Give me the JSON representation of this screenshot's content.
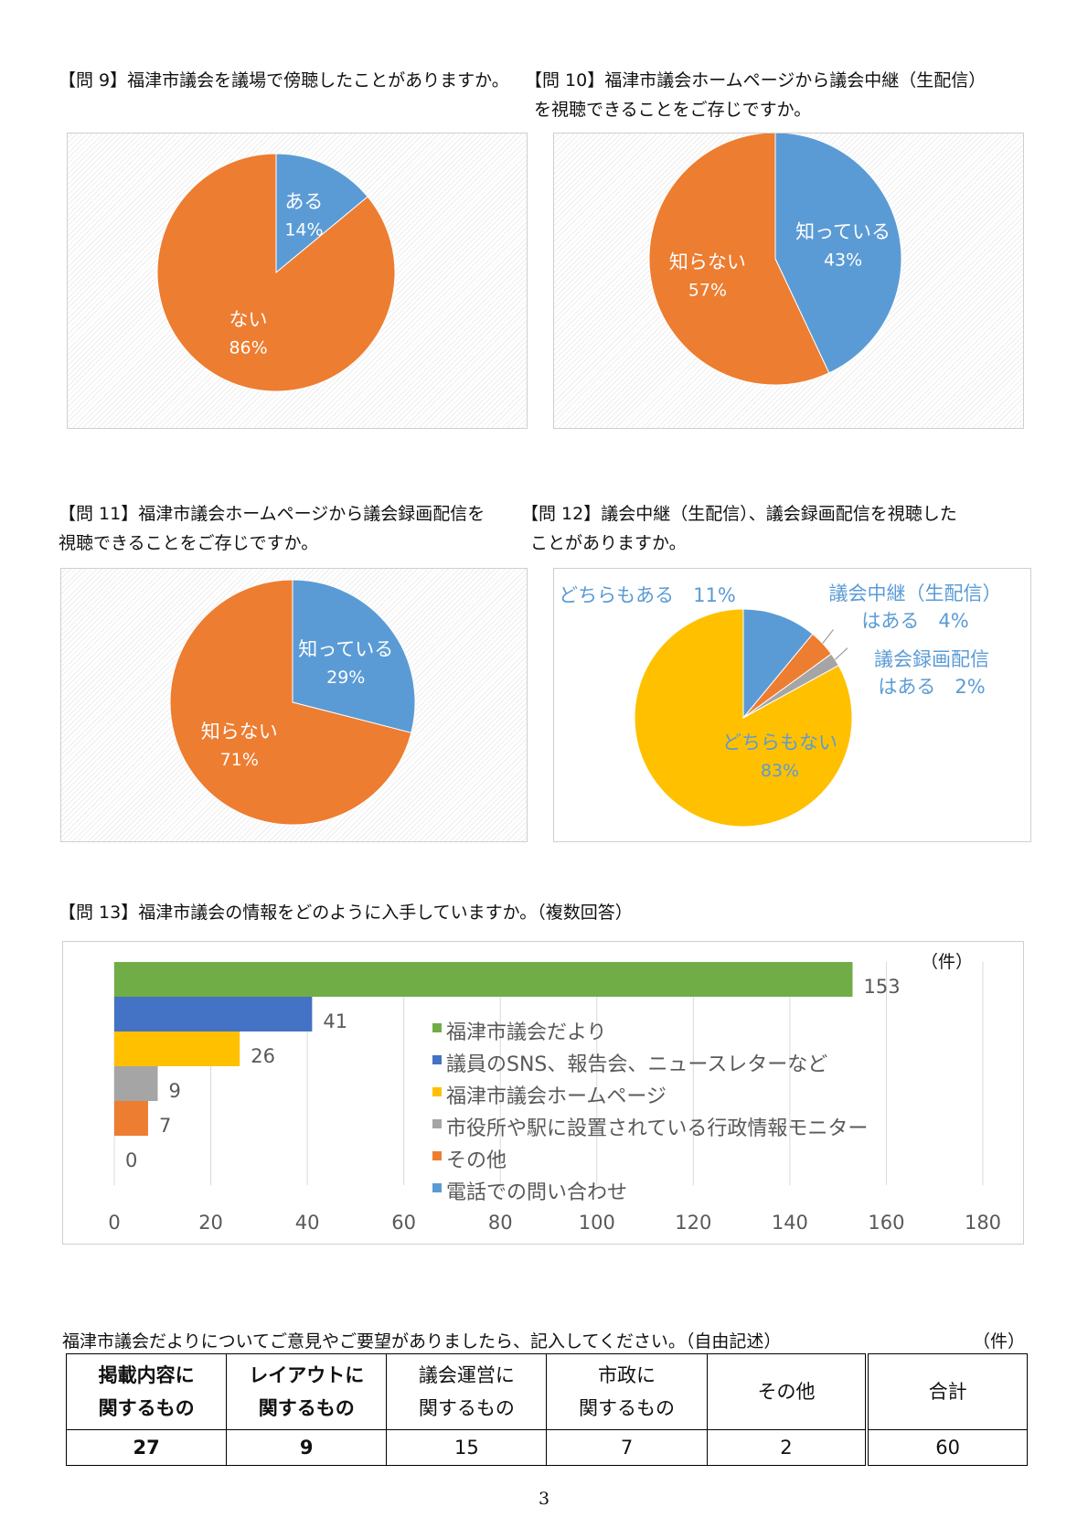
{
  "q9": {
    "title_lines": [
      "【問 9】福津市議会を議場で傍聴したことがありますか。"
    ]
  },
  "q10": {
    "title_lines": [
      "【問 10】福津市議会ホームページから議会中継（生配信）",
      "を視聴できることをご存じですか。"
    ]
  },
  "q11": {
    "title_lines": [
      "【問 11】福津市議会ホームページから議会録画配信を",
      "視聴できることをご存じですか。"
    ]
  },
  "q12": {
    "title_lines": [
      "【問 12】議会中継（生配信）、議会録画配信を視聴した",
      "ことがありますか。"
    ]
  },
  "q13": {
    "title_lines": [
      "【問 13】福津市議会の情報をどのように入手していますか。（複数回答）"
    ]
  },
  "chart_data": [
    {
      "id": "q9",
      "type": "pie",
      "slices": [
        {
          "label": "ある",
          "value": 14,
          "value_label": "14%",
          "color": "#5b9bd5"
        },
        {
          "label": "ない",
          "value": 86,
          "value_label": "86%",
          "color": "#ed7d31"
        }
      ]
    },
    {
      "id": "q10",
      "type": "pie",
      "slices": [
        {
          "label": "知っている",
          "value": 43,
          "value_label": "43%",
          "color": "#5b9bd5"
        },
        {
          "label": "知らない",
          "value": 57,
          "value_label": "57%",
          "color": "#ed7d31"
        }
      ]
    },
    {
      "id": "q11",
      "type": "pie",
      "slices": [
        {
          "label": "知っている",
          "value": 29,
          "value_label": "29%",
          "color": "#5b9bd5"
        },
        {
          "label": "知らない",
          "value": 71,
          "value_label": "71%",
          "color": "#ed7d31"
        }
      ]
    },
    {
      "id": "q12",
      "type": "pie",
      "slices": [
        {
          "label": "どちらもある",
          "value": 11,
          "value_label": "11%",
          "color": "#5b9bd5"
        },
        {
          "label": "議会中継（生配信）はある",
          "label_lines": [
            "議会中継（生配信）",
            "はある　4%"
          ],
          "value": 4,
          "value_label": "4%",
          "color": "#ed7d31"
        },
        {
          "label": "議会録画配信はある",
          "label_lines": [
            "議会録画配信",
            "はある　2%"
          ],
          "value": 2,
          "value_label": "2%",
          "color": "#a5a5a5"
        },
        {
          "label": "どちらもない",
          "value": 83,
          "value_label": "83%",
          "color": "#ffc000"
        }
      ],
      "label_color": "#5b9bd5"
    },
    {
      "id": "q13",
      "type": "bar",
      "orientation": "horizontal",
      "unit_label": "（件）",
      "xlim": [
        0,
        180
      ],
      "x_ticks": [
        0,
        20,
        40,
        60,
        80,
        100,
        120,
        140,
        160,
        180
      ],
      "gridlines": true,
      "legend_position": "right",
      "series": [
        {
          "name": "福津市議会だより",
          "value": 153,
          "color": "#70ad47"
        },
        {
          "name": "議員のSNS、報告会、ニュースレターなど",
          "value": 41,
          "color": "#4472c4"
        },
        {
          "name": "福津市議会ホームページ",
          "value": 26,
          "color": "#ffc000"
        },
        {
          "name": "市役所や駅に設置されている行政情報モニター",
          "value": 9,
          "color": "#a5a5a5"
        },
        {
          "name": "その他",
          "value": 7,
          "color": "#ed7d31"
        },
        {
          "name": "電話での問い合わせ",
          "value": 0,
          "color": "#5b9bd5"
        }
      ]
    }
  ],
  "feedback": {
    "caption": "福津市議会だよりについてご意見やご要望がありましたら、記入してください。（自由記述）",
    "unit": "（件）",
    "headers": [
      [
        "掲載内容に",
        "関するもの"
      ],
      [
        "レイアウトに",
        "関するもの"
      ],
      [
        "議会運営に",
        "関するもの"
      ],
      [
        "市政に",
        "関するもの"
      ],
      [
        "その他"
      ],
      [
        "合計"
      ]
    ],
    "values": [
      "27",
      "9",
      "15",
      "7",
      "2",
      "60"
    ]
  },
  "page_number": "3"
}
